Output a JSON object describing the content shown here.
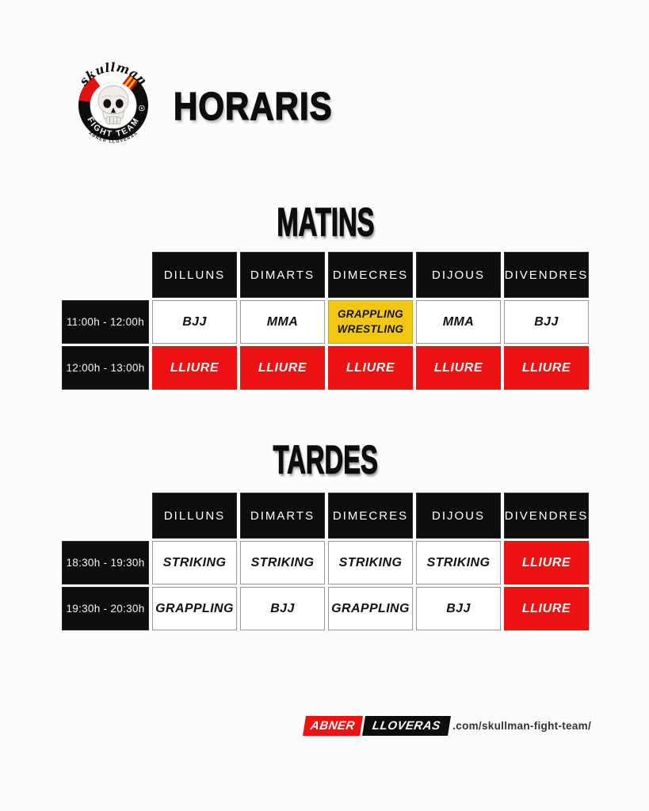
{
  "title": "HORARIS",
  "logo": {
    "brand": "skullman",
    "ring_text": "FIGHT TEAM",
    "sub_text": "ABNER LLOVERAS"
  },
  "colors": {
    "red": "#ec1212",
    "yellow": "#f2c712",
    "black": "#0d0d0d",
    "background": "#fcfcfc"
  },
  "sections": [
    {
      "heading": "MATINS",
      "days": [
        "DILLUNS",
        "DIMARTS",
        "DIMECRES",
        "DIJOUS",
        "DIVENDRES"
      ],
      "rows": [
        {
          "time": "11:00h - 12:00h",
          "cells": [
            {
              "label": "BJJ",
              "variant": "white"
            },
            {
              "label": "MMA",
              "variant": "white"
            },
            {
              "label": "GRAPPLING\nWRESTLING",
              "variant": "yellow"
            },
            {
              "label": "MMA",
              "variant": "white"
            },
            {
              "label": "BJJ",
              "variant": "white"
            }
          ]
        },
        {
          "time": "12:00h - 13:00h",
          "cells": [
            {
              "label": "LLIURE",
              "variant": "red"
            },
            {
              "label": "LLIURE",
              "variant": "red"
            },
            {
              "label": "LLIURE",
              "variant": "red"
            },
            {
              "label": "LLIURE",
              "variant": "red"
            },
            {
              "label": "LLIURE",
              "variant": "red"
            }
          ]
        }
      ]
    },
    {
      "heading": "TARDES",
      "days": [
        "DILLUNS",
        "DIMARTS",
        "DIMECRES",
        "DIJOUS",
        "DIVENDRES"
      ],
      "rows": [
        {
          "time": "18:30h - 19:30h",
          "cells": [
            {
              "label": "STRIKING",
              "variant": "white"
            },
            {
              "label": "STRIKING",
              "variant": "white"
            },
            {
              "label": "STRIKING",
              "variant": "white"
            },
            {
              "label": "STRIKING",
              "variant": "white"
            },
            {
              "label": "LLIURE",
              "variant": "red"
            }
          ]
        },
        {
          "time": "19:30h - 20:30h",
          "cells": [
            {
              "label": "GRAPPLING",
              "variant": "white"
            },
            {
              "label": "BJJ",
              "variant": "white"
            },
            {
              "label": "GRAPPLING",
              "variant": "white"
            },
            {
              "label": "BJJ",
              "variant": "white"
            },
            {
              "label": "LLIURE",
              "variant": "red"
            }
          ]
        }
      ]
    }
  ],
  "footer": {
    "badge_left": "ABNER",
    "badge_right": "LLOVERAS",
    "url": ".com/skullman-fight-team/"
  }
}
